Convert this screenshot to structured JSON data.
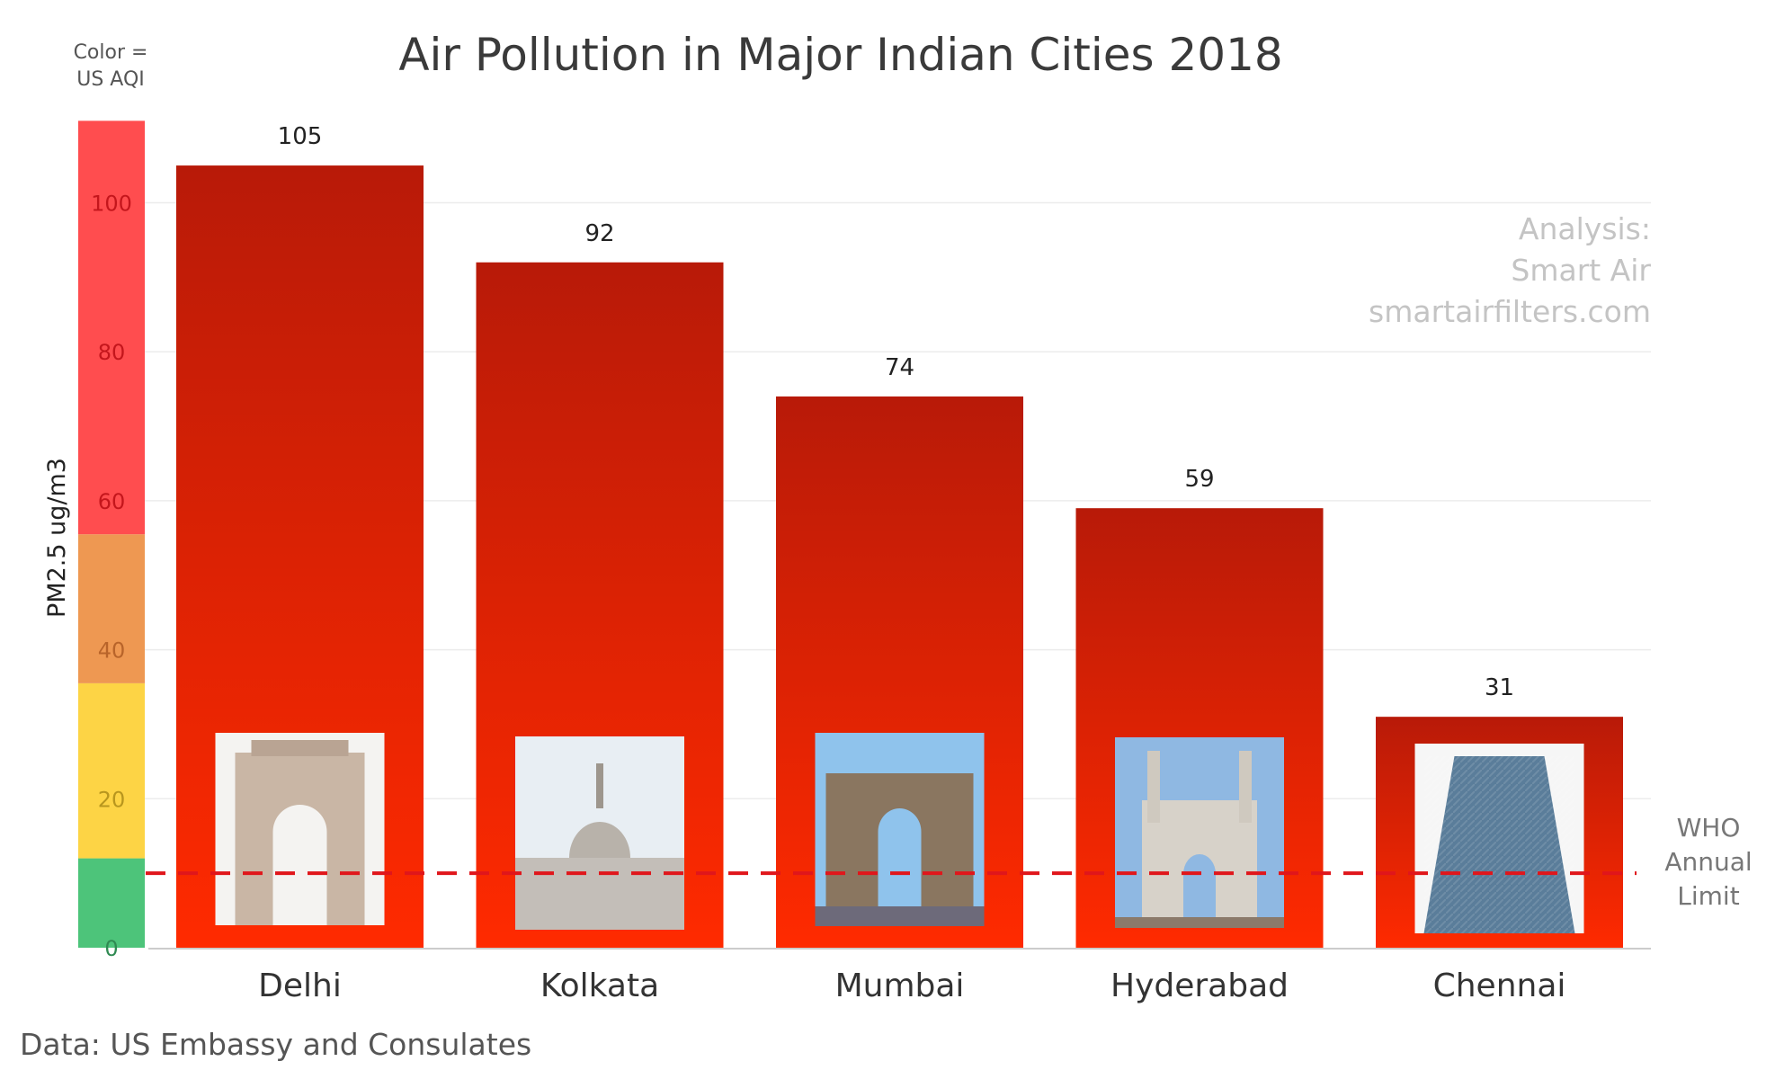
{
  "title": "Air Pollution in Major Indian Cities 2018",
  "legend": {
    "title_lines": [
      "Color =",
      "US AQI"
    ],
    "bands": [
      {
        "from": 0,
        "to": 12,
        "color": "#4dc47a"
      },
      {
        "from": 12,
        "to": 35.5,
        "color": "#fdd445"
      },
      {
        "from": 35.5,
        "to": 55.5,
        "color": "#ee9852"
      },
      {
        "from": 55.5,
        "to": 111,
        "color": "#ff4d4f"
      }
    ]
  },
  "credit_lines": [
    "Analysis:",
    "Smart Air",
    "smartairfilters.com"
  ],
  "source": "Data: US Embassy and Consulates",
  "chart_data": {
    "type": "bar",
    "title": "Air Pollution in Major Indian Cities 2018",
    "ylabel": "PM2.5 ug/m3",
    "xlabel": "",
    "categories": [
      "Delhi",
      "Kolkata",
      "Mumbai",
      "Hyderabad",
      "Chennai"
    ],
    "values": [
      105,
      92,
      74,
      59,
      31
    ],
    "ylim": [
      0,
      111
    ],
    "yticks": [
      0,
      20,
      40,
      60,
      80,
      100
    ],
    "grid": true,
    "bar_color_top": "#b81a08",
    "bar_color_bottom": "#ff2a00",
    "reference_line": {
      "value": 10,
      "label_lines": [
        "WHO",
        "Annual",
        "Limit"
      ],
      "color": "#e0161b"
    },
    "landmarks": [
      "India Gate",
      "Victoria Memorial",
      "Gateway of India",
      "Charminar",
      "Gopuram temple tower"
    ]
  }
}
